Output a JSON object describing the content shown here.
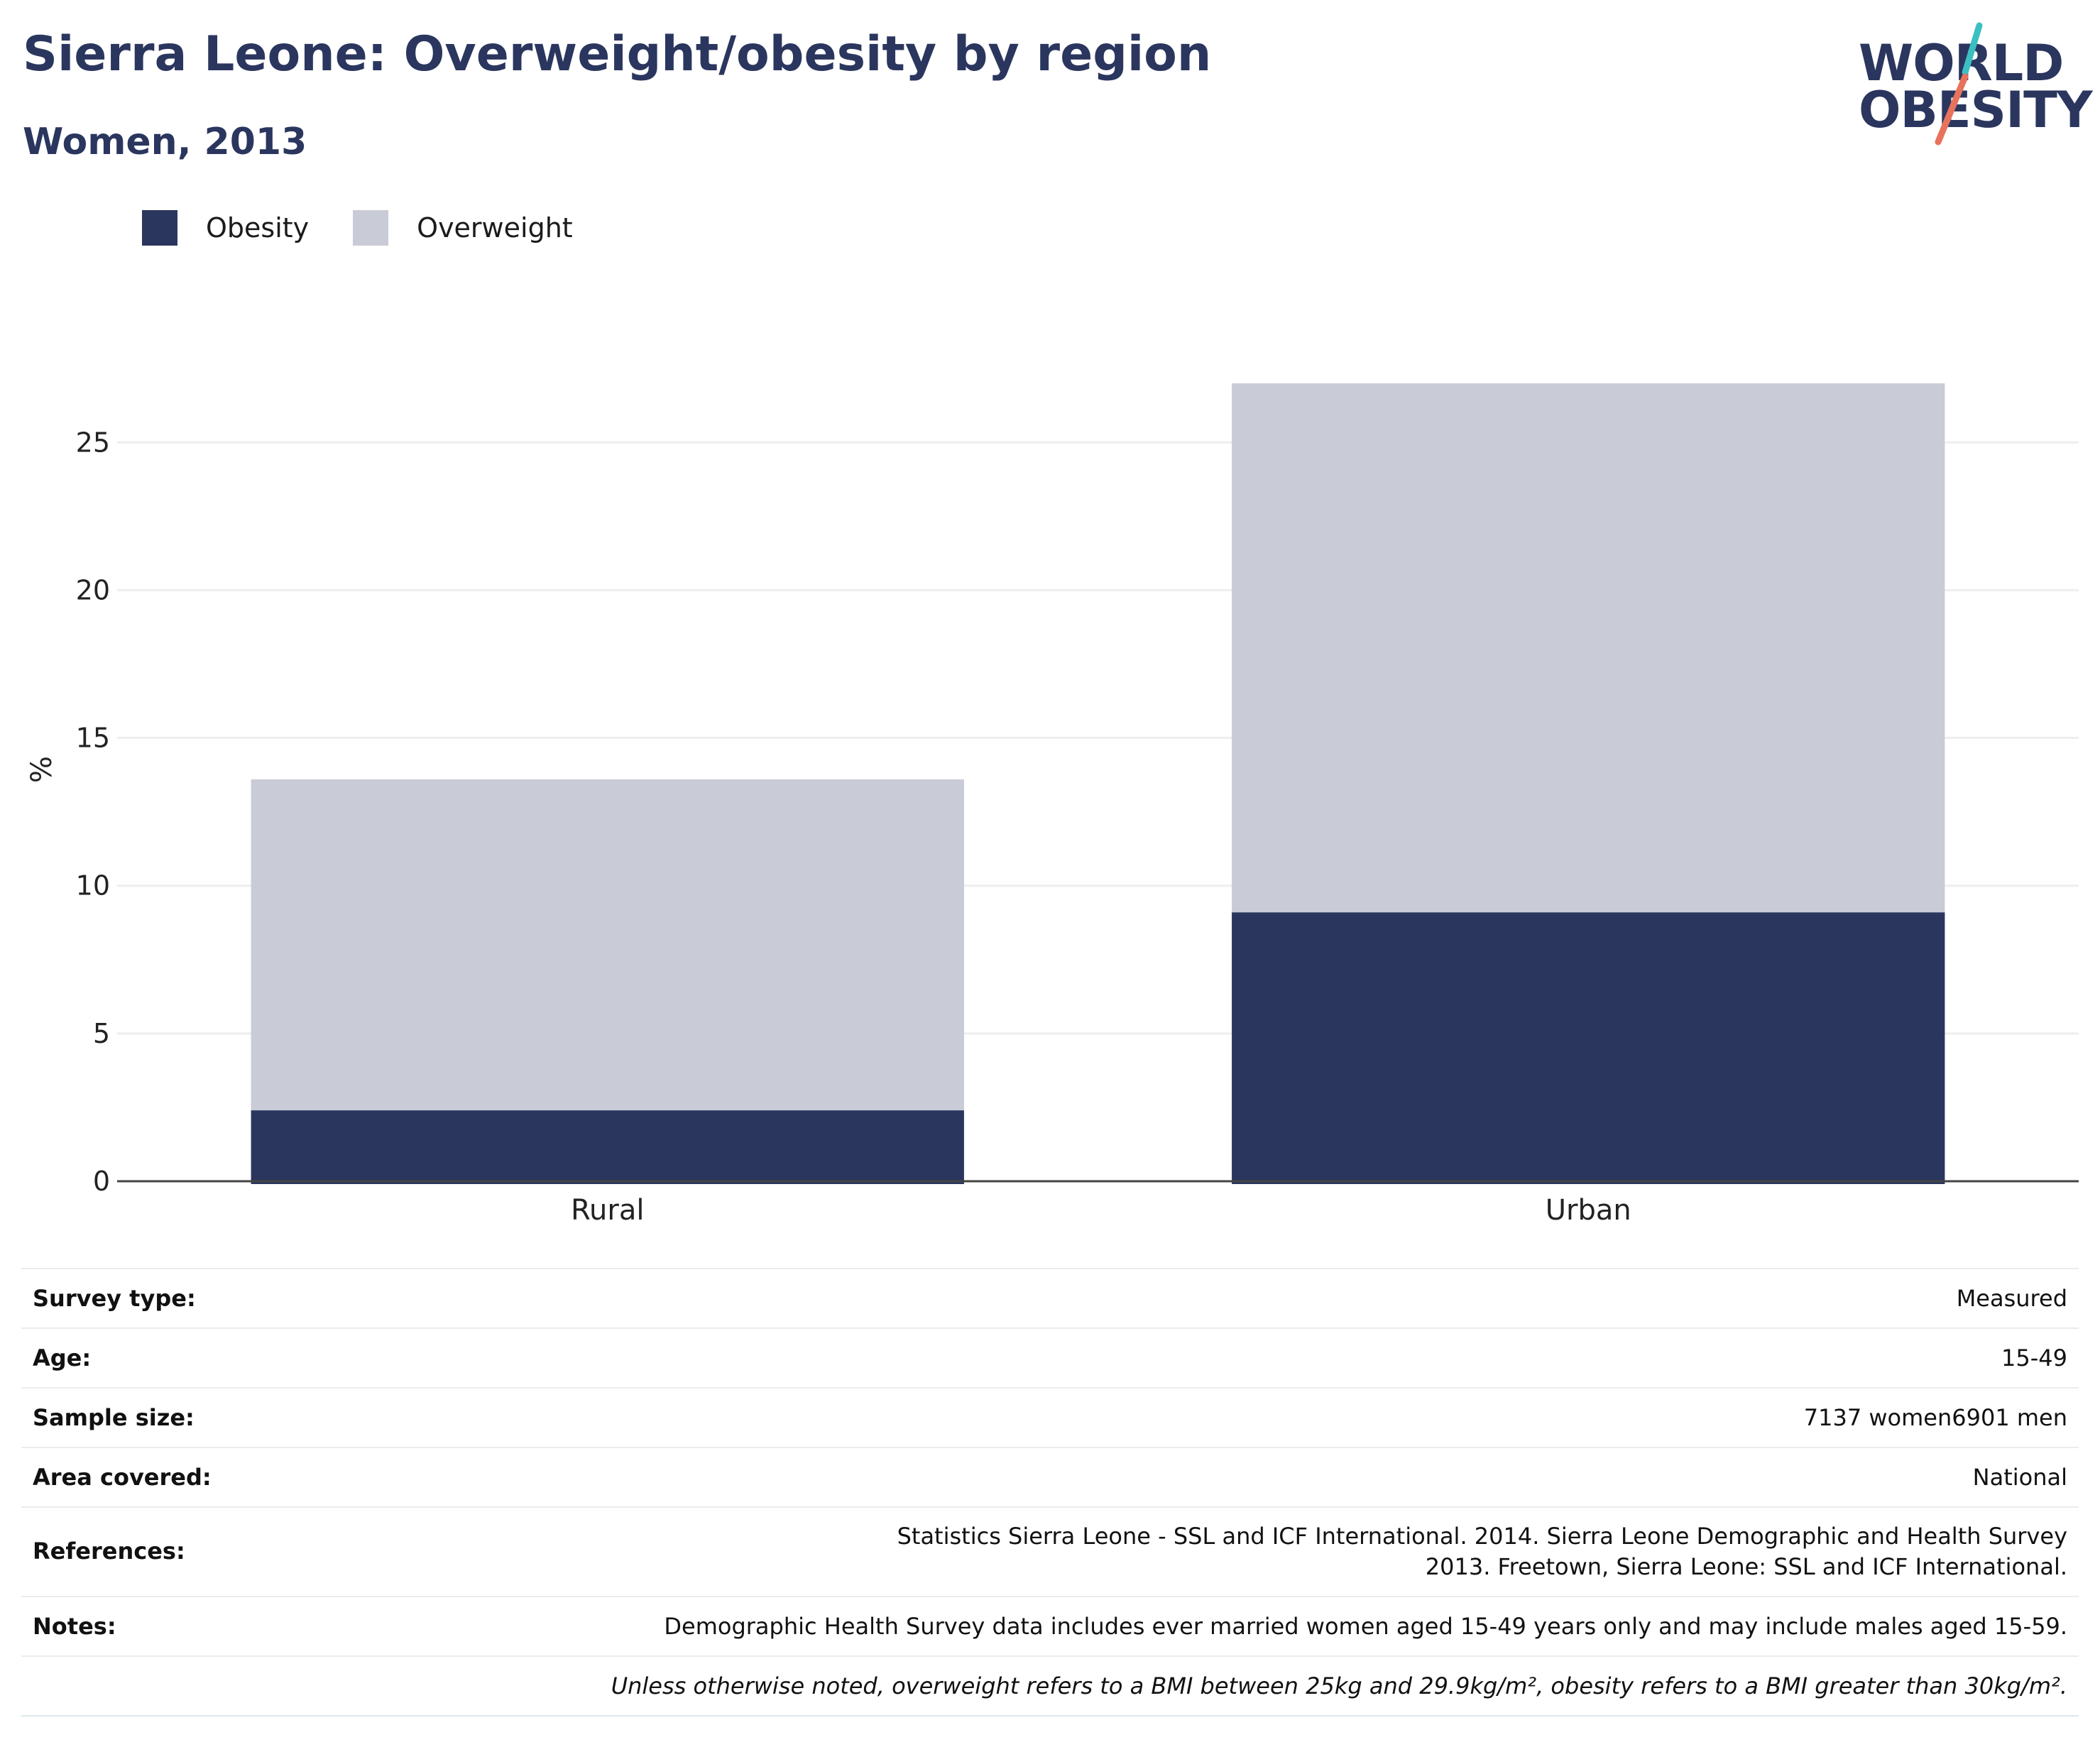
{
  "header": {
    "title": "Sierra Leone: Overweight/obesity by region",
    "subtitle": "Women, 2013"
  },
  "logo": {
    "line1": "WORLD",
    "line2": "OBESITY",
    "colors": {
      "text": "#2b365f",
      "slash_top": "#3bbfc2",
      "slash_bottom": "#e8735c"
    }
  },
  "legend": [
    {
      "label": "Obesity",
      "color": "#2b365f"
    },
    {
      "label": "Overweight",
      "color": "#c9cbd7"
    }
  ],
  "chart_data": {
    "type": "bar",
    "stacked": true,
    "categories": [
      "Rural",
      "Urban"
    ],
    "series": [
      {
        "name": "Obesity",
        "color": "#2b365f",
        "values": [
          2.4,
          9.1
        ]
      },
      {
        "name": "Overweight",
        "color": "#c9cbd7",
        "values": [
          11.2,
          17.9
        ]
      }
    ],
    "ylabel": "%",
    "ylim": [
      0,
      27
    ],
    "yticks": [
      0,
      5,
      10,
      15,
      20,
      25
    ],
    "grid": true,
    "legend_position": "top-left"
  },
  "meta": {
    "rows": [
      {
        "key": "Survey type:",
        "value": "Measured"
      },
      {
        "key": "Age:",
        "value": "15-49"
      },
      {
        "key": "Sample size:",
        "value": "7137 women6901 men"
      },
      {
        "key": "Area covered:",
        "value": "National"
      },
      {
        "key": "References:",
        "value": "Statistics Sierra Leone - SSL and ICF International. 2014. Sierra Leone Demographic and Health Survey 2013. Freetown, Sierra Leone: SSL and ICF International."
      },
      {
        "key": "Notes:",
        "value": "Demographic Health Survey data includes ever married women aged 15-49 years only and may include males aged 15-59."
      }
    ],
    "footnote": "Unless otherwise noted, overweight refers to a BMI between 25kg and 29.9kg/m², obesity refers to a BMI greater than 30kg/m²."
  }
}
